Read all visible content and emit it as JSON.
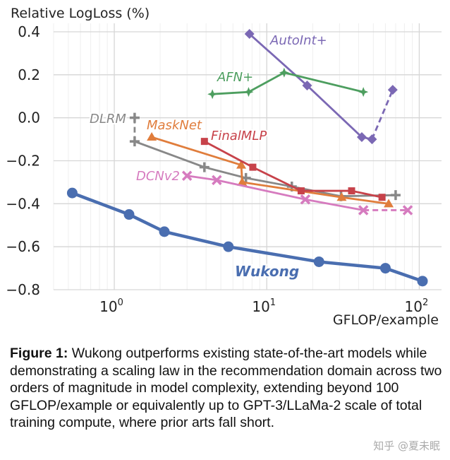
{
  "chart_data": {
    "type": "line",
    "title": "",
    "ylabel": "Relative LogLoss (%)",
    "xlabel": "GFLOP/example",
    "xscale": "log",
    "xlim": [
      0.4,
      140
    ],
    "ylim": [
      -0.8,
      0.4
    ],
    "xticks": [
      1,
      10,
      100
    ],
    "xtick_labels": [
      {
        "base": "10",
        "exp": "0"
      },
      {
        "base": "10",
        "exp": "1"
      },
      {
        "base": "10",
        "exp": "2"
      }
    ],
    "yticks": [
      0.4,
      0.2,
      0.0,
      -0.2,
      -0.4,
      -0.6,
      -0.8
    ],
    "ytick_labels": [
      "0.4",
      "0.2",
      "0.0",
      "−0.2",
      "−0.4",
      "−0.6",
      "−0.8"
    ],
    "grid": true,
    "legend": "inline labels",
    "series": [
      {
        "name": "AutoInt+",
        "color": "#7b68b4",
        "marker": "diamond",
        "x": [
          7.7,
          18.4,
          42,
          49,
          67
        ],
        "y": [
          0.39,
          0.15,
          -0.09,
          -0.1,
          0.13
        ],
        "dashed_segments": [
          3
        ]
      },
      {
        "name": "AFN+",
        "color": "#4d9e5f",
        "marker": "star4",
        "x": [
          4.4,
          7.6,
          13,
          43
        ],
        "y": [
          0.11,
          0.12,
          0.21,
          0.12
        ],
        "dashed_segments": []
      },
      {
        "name": "DLRM",
        "color": "#888888",
        "marker": "plus",
        "x": [
          1.36,
          1.36,
          3.9,
          7.3,
          14.6,
          30.7,
          70
        ],
        "y": [
          0.0,
          -0.11,
          -0.23,
          -0.28,
          -0.32,
          -0.365,
          -0.36
        ],
        "dashed_segments": [
          0
        ]
      },
      {
        "name": "MaskNet",
        "color": "#e07d3c",
        "marker": "triangle",
        "x": [
          1.76,
          6.8,
          6.9,
          31,
          63
        ],
        "y": [
          -0.09,
          -0.22,
          -0.3,
          -0.37,
          -0.4
        ],
        "dashed_segments": []
      },
      {
        "name": "FinalMLP",
        "color": "#c7424a",
        "marker": "square",
        "x": [
          3.9,
          8.1,
          16.8,
          36,
          57
        ],
        "y": [
          -0.11,
          -0.23,
          -0.34,
          -0.34,
          -0.37
        ],
        "dashed_segments": []
      },
      {
        "name": "DCNv2",
        "color": "#d67bbf",
        "marker": "x",
        "x": [
          3.0,
          4.7,
          17.9,
          43,
          84
        ],
        "y": [
          -0.27,
          -0.29,
          -0.38,
          -0.43,
          -0.43
        ],
        "dashed_segments": [
          3
        ]
      },
      {
        "name": "Wukong",
        "color": "#4a6eb0",
        "marker": "circle",
        "x": [
          0.53,
          1.25,
          2.13,
          5.6,
          22,
          60,
          105
        ],
        "y": [
          -0.35,
          -0.45,
          -0.53,
          -0.6,
          -0.67,
          -0.7,
          -0.76
        ],
        "dashed_segments": []
      }
    ]
  },
  "caption": {
    "label": "Figure 1:",
    "text": " Wukong outperforms existing state-of-the-art models while demonstrating a scaling law in the recommendation domain across two orders of magnitude in model complexity, extending beyond 100 GFLOP/example or equivalently up to GPT-3/LLaMa-2 scale of total training compute, where prior arts fall short."
  },
  "watermark": "知乎 @夏未眠"
}
